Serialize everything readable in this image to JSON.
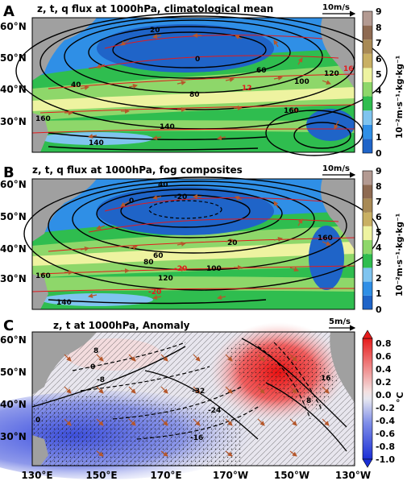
{
  "chart_data": [
    {
      "panel": "A",
      "type": "heatmap",
      "title": "z, t, q flux at 1000hPa, climatological mean",
      "vector_scale_label": "10m/s",
      "y_ticks": [
        "60°N",
        "50°N",
        "40°N",
        "30°N"
      ],
      "colorbar": {
        "label": "10⁻²m·s⁻¹·kg·kg⁻¹",
        "ticks": [
          "9",
          "8",
          "7",
          "6",
          "5",
          "4",
          "3",
          "2",
          "1",
          "0"
        ],
        "colors": [
          "#1f64c8",
          "#2f8fe6",
          "#7fc4ef",
          "#2fbd4f",
          "#8ed76a",
          "#eef3a0",
          "#c9b063",
          "#a88a55",
          "#8e6a52",
          "#b39a92"
        ]
      },
      "contour_labels": [
        "20",
        "0",
        "40",
        "60",
        "80",
        "100",
        "120",
        "140",
        "160",
        "16",
        "12",
        "16"
      ]
    },
    {
      "panel": "B",
      "type": "heatmap",
      "title": "z, t, q flux at 1000hPa, fog composites",
      "vector_scale_label": "10m/s",
      "y_ticks": [
        "60°N",
        "50°N",
        "40°N",
        "30°N"
      ],
      "colorbar": {
        "label": "10⁻²m·s⁻¹·kg·kg⁻¹",
        "ticks": [
          "9",
          "8",
          "7",
          "6",
          "5",
          "4",
          "3",
          "2",
          "1",
          "0"
        ],
        "colors": [
          "#1f64c8",
          "#2f8fe6",
          "#7fc4ef",
          "#2fbd4f",
          "#8ed76a",
          "#eef3a0",
          "#c9b063",
          "#a88a55",
          "#8e6a52",
          "#b39a92"
        ]
      },
      "contour_labels": [
        "40",
        "0",
        "-20",
        "20",
        "60",
        "80",
        "100",
        "120",
        "140",
        "160",
        "160",
        "-20",
        "-20"
      ]
    },
    {
      "panel": "C",
      "type": "heatmap",
      "title": "z, t at 1000hPa, Anomaly",
      "vector_scale_label": "5m/s",
      "y_ticks": [
        "60°N",
        "50°N",
        "40°N",
        "30°N"
      ],
      "x_ticks": [
        "130°E",
        "150°E",
        "170°E",
        "170°W",
        "150°W",
        "130°W"
      ],
      "colorbar": {
        "label": "°C",
        "ticks": [
          "0.8",
          "0.6",
          "0.4",
          "0.2",
          "0.0",
          "-0.2",
          "-0.4",
          "-0.6",
          "-0.8",
          "-1.0"
        ],
        "range": [
          -1.0,
          0.8
        ]
      },
      "contour_labels": [
        "8",
        "0",
        "-8",
        "-16",
        "-24",
        "-32",
        "0",
        "16",
        "8",
        "0",
        "-8",
        "-16"
      ]
    }
  ],
  "panel_letters": [
    "A",
    "B",
    "C"
  ]
}
